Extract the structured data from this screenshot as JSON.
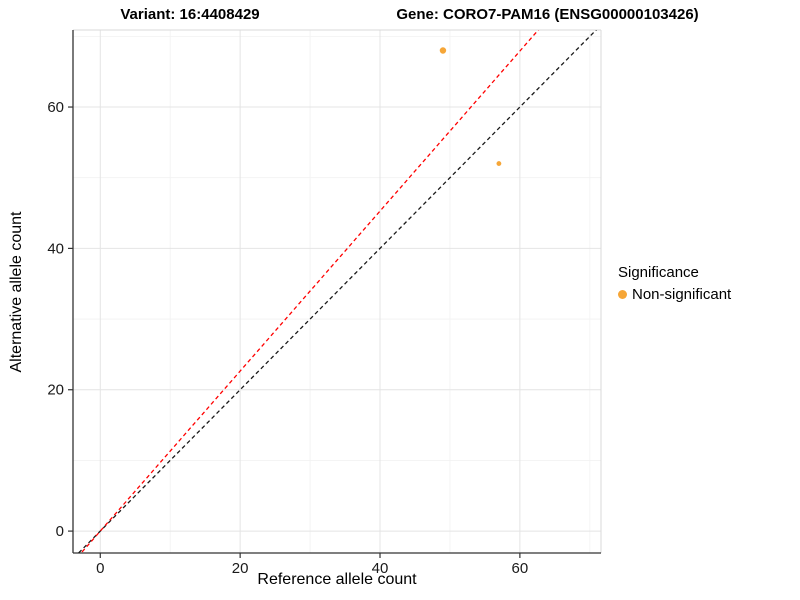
{
  "chart_data": {
    "type": "scatter",
    "titles": {
      "left": "Variant: 16:4408429",
      "right": "Gene: CORO7-PAM16 (ENSG00000103426)"
    },
    "xlabel": "Reference allele count",
    "ylabel": "Alternative allele count",
    "xlim": [
      -3.9,
      71.6
    ],
    "ylim": [
      -3.1,
      70.9
    ],
    "xticks": [
      0,
      20,
      40,
      60
    ],
    "yticks": [
      0,
      20,
      40,
      60
    ],
    "minor_step": 10,
    "grid": "on",
    "points": [
      {
        "x": 49,
        "y": 68,
        "r": 3.2,
        "color": "#F6A637",
        "significance": "Non-significant"
      },
      {
        "x": 57,
        "y": 52,
        "r": 2.4,
        "color": "#F6A637",
        "significance": "Non-significant"
      }
    ],
    "lines": [
      {
        "name": "identity-line",
        "slope": 1.0,
        "intercept": 0,
        "color": "#1A1A1A",
        "dash": "4 3"
      },
      {
        "name": "ratio-line",
        "slope": 1.132,
        "intercept": 0,
        "color": "#FF0000",
        "dash": "4 3"
      }
    ],
    "legend": {
      "title": "Significance",
      "position": "right",
      "items": [
        {
          "label": "Non-significant",
          "color": "#F6A637"
        }
      ]
    },
    "style": {
      "major_grid": "#E4E4E4",
      "minor_grid": "#F2F2F2",
      "panel_border": "#D9D9D9",
      "axis_line": "#333333",
      "tick_color": "#333333",
      "tick_label_color": "#1A1A1A",
      "background": "#FFFFFF"
    }
  }
}
